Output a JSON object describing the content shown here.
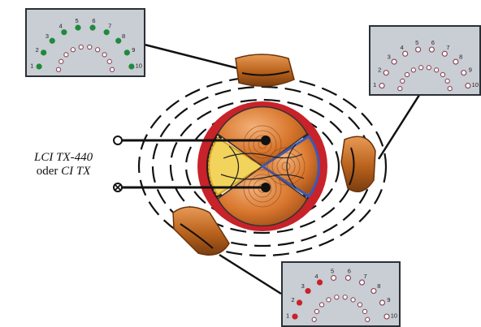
{
  "label": {
    "line1": "LCI TX-440",
    "line2_prefix": "oder ",
    "line2_italic": "CI TX"
  },
  "meters": [
    {
      "id": "meter-top-left",
      "numbers": [
        "1",
        "2",
        "3",
        "4",
        "5",
        "6",
        "7",
        "8",
        "9",
        "10"
      ],
      "level": 10,
      "active_color": "#1f8a3c"
    },
    {
      "id": "meter-top-right",
      "numbers": [
        "1",
        "2",
        "3",
        "4",
        "5",
        "6",
        "7",
        "8",
        "9",
        "10"
      ],
      "level": 0,
      "active_color": "#1f8a3c"
    },
    {
      "id": "meter-bottom-right",
      "numbers": [
        "1",
        "2",
        "3",
        "4",
        "5",
        "6",
        "7",
        "8",
        "9",
        "10"
      ],
      "level": 4,
      "active_color": "#c8222a"
    }
  ],
  "colors": {
    "inactive_led": "#8a4a5a",
    "sheath_red": "#c8222a",
    "copper": "#d9772e",
    "clamp": "#b8611c",
    "blue_outline": "#3a5ab8"
  }
}
